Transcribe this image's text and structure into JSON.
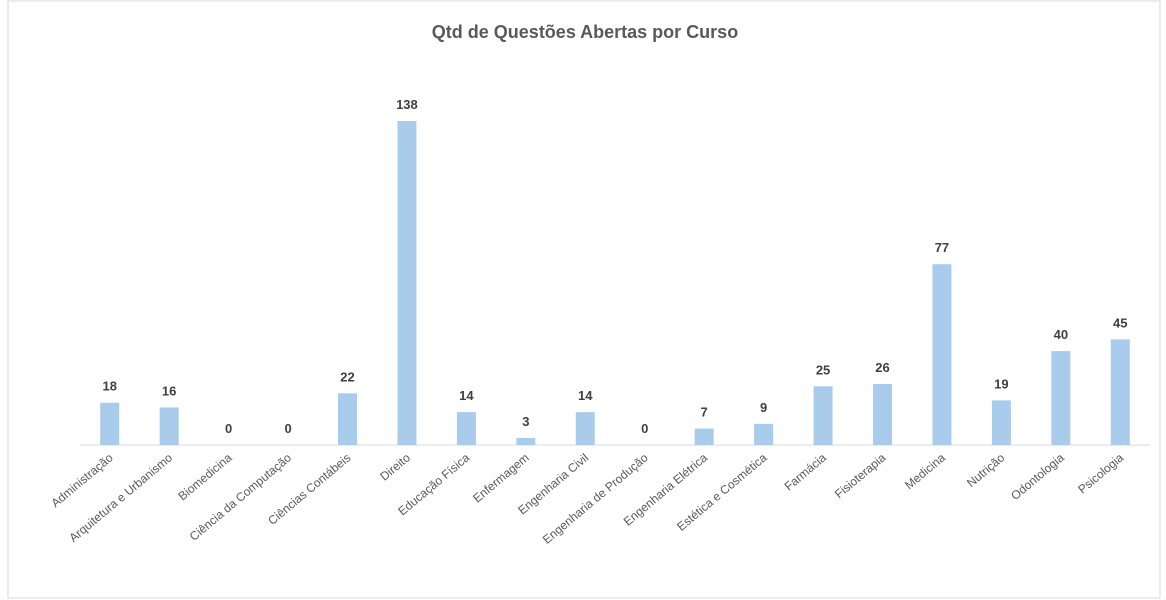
{
  "chart_data": {
    "type": "bar",
    "title": "Qtd de Questões Abertas por Curso",
    "categories": [
      "Administração",
      "Arquitetura e Urbanismo",
      "Biomedicina",
      "Ciência da Computação",
      "Ciências Contábeis",
      "Direito",
      "Educação Física",
      "Enfermagem",
      "Engenharia Civil",
      "Engenharia de Produção",
      "Engenharia Elétrica",
      "Estética e Cosmética",
      "Farmácia",
      "Fisioterapia",
      "Medicina",
      "Nutrição",
      "Odontologia",
      "Psicologia"
    ],
    "values": [
      18,
      16,
      0,
      0,
      22,
      138,
      14,
      3,
      14,
      0,
      7,
      9,
      25,
      26,
      77,
      19,
      40,
      45
    ],
    "color": "#a9cbec"
  }
}
